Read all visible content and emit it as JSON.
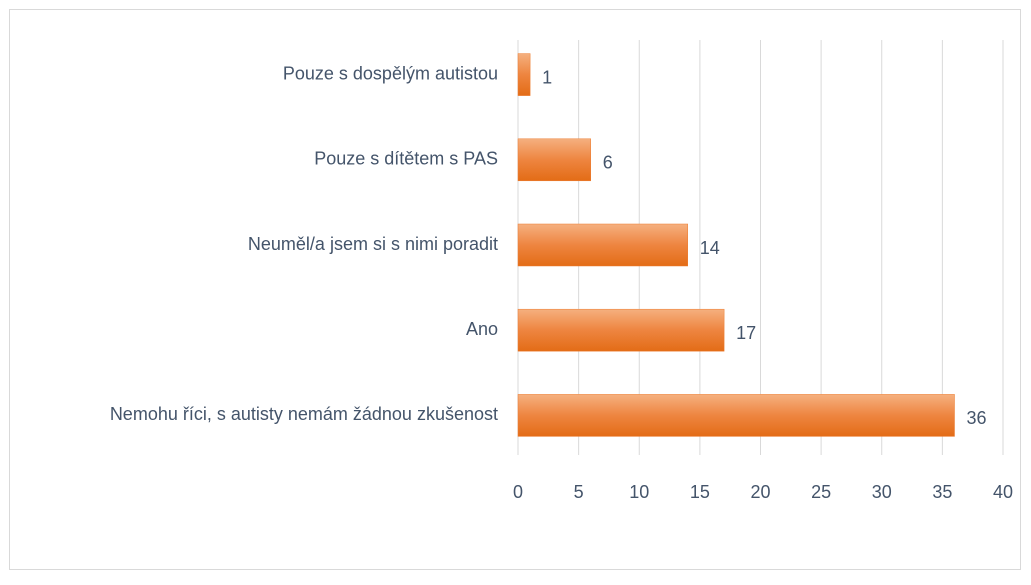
{
  "chart_data": {
    "type": "barh",
    "categories": [
      "Pouze s dospělým autistou",
      "Pouze s dítětem s PAS",
      "Neuměl/a jsem si s nimi poradit",
      "Ano",
      "Nemohu říci, s autisty nemám žádnou zkušenost"
    ],
    "values": [
      1,
      6,
      14,
      17,
      36
    ],
    "color": "#ed7d31",
    "xlim": [
      0,
      40
    ],
    "xticks": [
      0,
      5,
      10,
      15,
      20,
      25,
      30,
      35,
      40
    ],
    "grid": true
  }
}
